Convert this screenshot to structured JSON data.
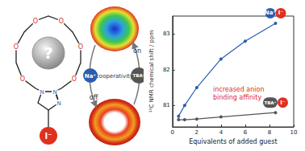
{
  "chart_data": {
    "type": "line",
    "x_label": "Equivalents of added guest",
    "y_label": "¹³C NMR chemical shift / ppm",
    "xlim": [
      0,
      10
    ],
    "xticks": [
      0,
      2,
      4,
      6,
      8,
      10
    ],
    "ylim": [
      80.4,
      83.5
    ],
    "yticks": [
      81,
      82,
      83
    ],
    "grid": false,
    "series": [
      {
        "name": "Na⁺ I⁻",
        "color": "#2a5db0",
        "marker": "circle",
        "x": [
          0.5,
          1,
          2,
          4,
          6,
          8.5
        ],
        "values": [
          80.7,
          81.0,
          81.5,
          82.3,
          82.8,
          83.3
        ]
      },
      {
        "name": "TBA⁺ I⁻",
        "color": "#555555",
        "marker": "circle",
        "x": [
          0.5,
          1,
          2,
          4,
          8.5
        ],
        "values": [
          80.6,
          80.6,
          80.62,
          80.68,
          80.8
        ]
      }
    ],
    "annotations": [
      {
        "text": "increased anion binding affinity",
        "color": "#e0301e"
      }
    ]
  },
  "diagram": {
    "host": {
      "label": "?",
      "ring_atoms": [
        null,
        "O",
        null,
        "O",
        null,
        "O",
        null,
        "O",
        null,
        "O",
        null,
        "O",
        null
      ],
      "triazole_atoms": [
        "N",
        "N",
        "N",
        null,
        null
      ],
      "guest": "I⁻"
    },
    "cycle": {
      "center": "cooperativity",
      "left": "Na⁺",
      "right": "TBA⁺",
      "top": "on",
      "bottom": "off"
    }
  }
}
